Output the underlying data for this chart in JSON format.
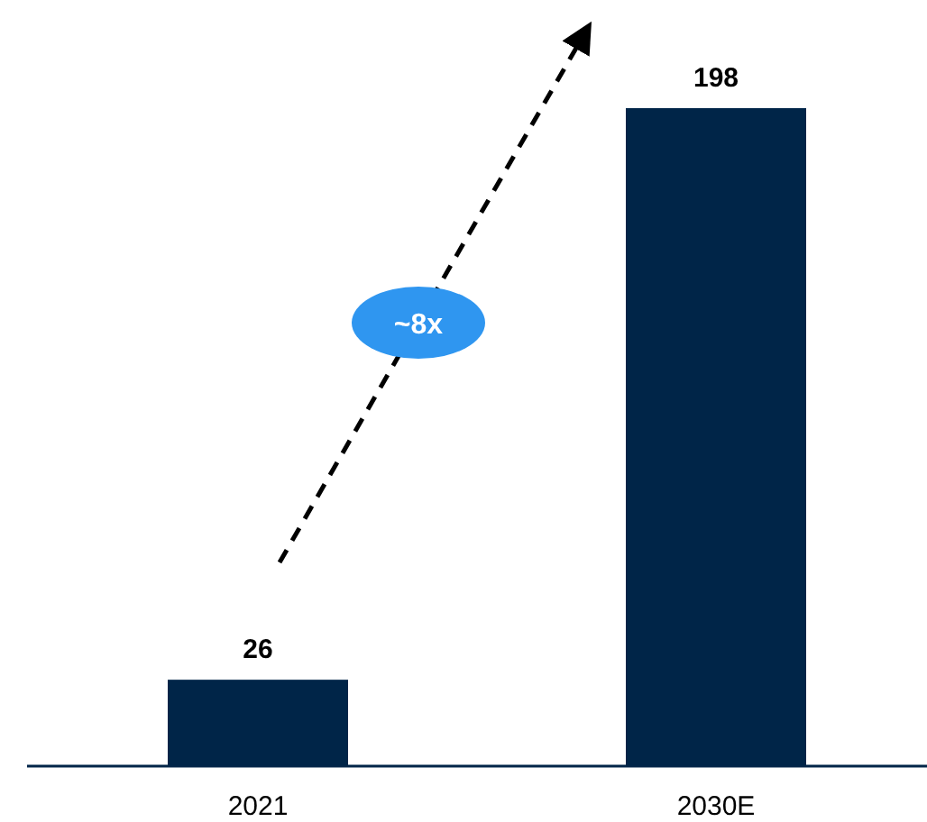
{
  "chart_data": {
    "type": "bar",
    "categories": [
      "2021",
      "2030E"
    ],
    "values": [
      26,
      198
    ],
    "color": "#002548",
    "data_labels": true,
    "annotations": [
      "~8x"
    ]
  }
}
